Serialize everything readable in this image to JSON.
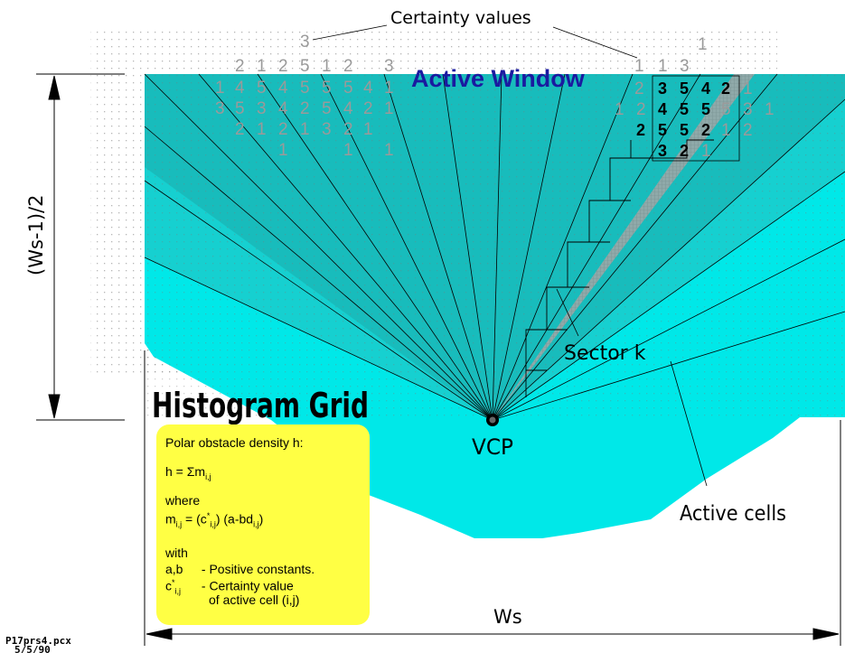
{
  "labels": {
    "certainty_values": "Certainty values",
    "active_window": "Active Window",
    "height_label": "(Ws-1)/2",
    "sector": "Sector k",
    "histogram_grid": "Histogram Grid",
    "vcp": "VCP",
    "active_cells": "Active cells",
    "width_label": "Ws",
    "file_name": "P17prs4.pcx",
    "file_date": "5/5/90"
  },
  "formula": {
    "title": "Polar obstacle density h:",
    "h_lhs": "h = ",
    "sum_symbol": "Σm",
    "sum_sub": "i,j",
    "where": "where",
    "m_lhs": "m",
    "m_sub": "i,j",
    "m_eq": " = ",
    "c_open": "(c",
    "c_sup": "*",
    "c_sub": "i,j",
    "c_close": ")",
    "ab_open": "(a-bd",
    "ab_sub": "i,j",
    "ab_close": ")",
    "with": "with",
    "ab_name": "a,b",
    "ab_desc": "- Positive constants.",
    "c_name": "c",
    "c_name_sup": "*",
    "c_name_sub": "i,j",
    "c_desc_1": "- Certainty value",
    "c_desc_2": "of active cell (i,j)"
  },
  "grid_numbers": {
    "top_markers": [
      "3",
      "1"
    ],
    "row0": [
      "2",
      "1",
      "2",
      "5",
      "1",
      "2",
      "3",
      "1",
      "1",
      "3"
    ],
    "row1": [
      "1",
      "4",
      "5",
      "4",
      "5",
      "5",
      "5",
      "4",
      "1"
    ],
    "row2": [
      "3",
      "5",
      "3",
      "4",
      "2",
      "5",
      "4",
      "2",
      "1"
    ],
    "row3": [
      "2",
      "1",
      "2",
      "1",
      "3",
      "2",
      "1"
    ],
    "row4": [
      "1",
      "1",
      "1"
    ],
    "right_row1_left": [
      "2"
    ],
    "right_row1": [
      "3",
      "5",
      "4",
      "2"
    ],
    "right_row1_after": [
      "1"
    ],
    "right_row2_left": [
      "1",
      "2"
    ],
    "right_row2": [
      "4",
      "5",
      "5"
    ],
    "right_row2_after": [
      "5",
      "3",
      "1"
    ],
    "right_row3": [
      "2",
      "5",
      "5",
      "2"
    ],
    "right_row3_after": [
      "1",
      "2"
    ],
    "right_row4": [
      "3",
      "2"
    ],
    "right_row4_after": [
      "1"
    ]
  },
  "colors": {
    "active_region": "#00e8e8",
    "window": "#1ec8c8",
    "sector": "#9ab4b4",
    "formula_box": "#ffff44",
    "active_window_text": "#1a1aa0"
  }
}
